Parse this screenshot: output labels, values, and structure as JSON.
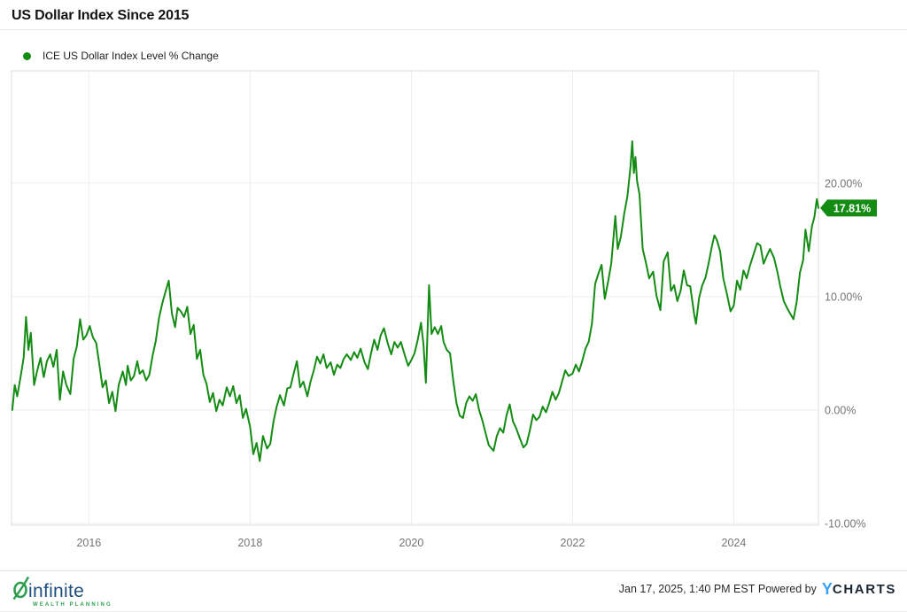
{
  "header": {
    "title": "US Dollar Index Since 2015"
  },
  "legend": {
    "series_label": "ICE US Dollar Index Level % Change"
  },
  "chart_data": {
    "type": "line",
    "title": "US Dollar Index Since 2015",
    "xlabel": "",
    "ylabel": "",
    "grid": true,
    "legend_position": "top-left",
    "x_range": [
      2015.04,
      2025.05
    ],
    "y_range": [
      -10.16,
      29.9
    ],
    "x_ticks": [
      {
        "value": 2016,
        "label": "2016"
      },
      {
        "value": 2018,
        "label": "2018"
      },
      {
        "value": 2020,
        "label": "2020"
      },
      {
        "value": 2022,
        "label": "2022"
      },
      {
        "value": 2024,
        "label": "2024"
      }
    ],
    "y_ticks": [
      {
        "value": 20,
        "label": "20.00%"
      },
      {
        "value": 10,
        "label": "10.00%"
      },
      {
        "value": 0,
        "label": "0.00%"
      },
      {
        "value": -10,
        "label": "-10.00%"
      }
    ],
    "last_point": {
      "label": "17.81%",
      "value": 17.81,
      "x": 2025.05
    },
    "series": [
      {
        "name": "ICE US Dollar Index Level % Change",
        "color": "#148c14",
        "points": [
          [
            2015.05,
            0.0
          ],
          [
            2015.08,
            2.2
          ],
          [
            2015.11,
            1.2
          ],
          [
            2015.15,
            2.8
          ],
          [
            2015.19,
            4.6
          ],
          [
            2015.22,
            8.2
          ],
          [
            2015.25,
            5.3
          ],
          [
            2015.28,
            6.8
          ],
          [
            2015.32,
            2.2
          ],
          [
            2015.36,
            3.5
          ],
          [
            2015.4,
            4.6
          ],
          [
            2015.44,
            2.9
          ],
          [
            2015.48,
            4.3
          ],
          [
            2015.52,
            4.9
          ],
          [
            2015.56,
            3.8
          ],
          [
            2015.6,
            5.3
          ],
          [
            2015.64,
            0.9
          ],
          [
            2015.68,
            3.4
          ],
          [
            2015.72,
            2.2
          ],
          [
            2015.77,
            1.4
          ],
          [
            2015.81,
            4.5
          ],
          [
            2015.85,
            5.6
          ],
          [
            2015.89,
            8.0
          ],
          [
            2015.93,
            6.2
          ],
          [
            2015.97,
            6.6
          ],
          [
            2016.01,
            7.4
          ],
          [
            2016.05,
            6.4
          ],
          [
            2016.09,
            5.9
          ],
          [
            2016.13,
            4.0
          ],
          [
            2016.17,
            2.0
          ],
          [
            2016.21,
            2.6
          ],
          [
            2016.25,
            0.6
          ],
          [
            2016.29,
            1.6
          ],
          [
            2016.33,
            -0.1
          ],
          [
            2016.37,
            2.2
          ],
          [
            2016.42,
            3.4
          ],
          [
            2016.46,
            2.2
          ],
          [
            2016.48,
            3.9
          ],
          [
            2016.52,
            2.6
          ],
          [
            2016.56,
            3.0
          ],
          [
            2016.6,
            4.3
          ],
          [
            2016.63,
            3.2
          ],
          [
            2016.67,
            3.5
          ],
          [
            2016.71,
            2.6
          ],
          [
            2016.75,
            3.1
          ],
          [
            2016.79,
            4.8
          ],
          [
            2016.83,
            6.1
          ],
          [
            2016.87,
            8.1
          ],
          [
            2016.91,
            9.4
          ],
          [
            2016.95,
            10.4
          ],
          [
            2016.99,
            11.4
          ],
          [
            2017.03,
            8.5
          ],
          [
            2017.07,
            7.3
          ],
          [
            2017.1,
            9.0
          ],
          [
            2017.14,
            8.7
          ],
          [
            2017.18,
            8.2
          ],
          [
            2017.22,
            9.1
          ],
          [
            2017.26,
            6.7
          ],
          [
            2017.3,
            7.5
          ],
          [
            2017.34,
            4.5
          ],
          [
            2017.38,
            5.3
          ],
          [
            2017.42,
            3.1
          ],
          [
            2017.46,
            2.3
          ],
          [
            2017.5,
            0.7
          ],
          [
            2017.54,
            1.5
          ],
          [
            2017.58,
            -0.1
          ],
          [
            2017.62,
            0.9
          ],
          [
            2017.66,
            0.4
          ],
          [
            2017.71,
            2.0
          ],
          [
            2017.75,
            1.2
          ],
          [
            2017.79,
            2.1
          ],
          [
            2017.83,
            0.6
          ],
          [
            2017.87,
            1.3
          ],
          [
            2017.91,
            -0.7
          ],
          [
            2017.95,
            0.1
          ],
          [
            2018.0,
            -1.5
          ],
          [
            2018.04,
            -3.9
          ],
          [
            2018.08,
            -2.9
          ],
          [
            2018.12,
            -4.5
          ],
          [
            2018.16,
            -2.3
          ],
          [
            2018.21,
            -3.4
          ],
          [
            2018.25,
            -3.0
          ],
          [
            2018.29,
            -1.0
          ],
          [
            2018.33,
            0.3
          ],
          [
            2018.37,
            1.3
          ],
          [
            2018.42,
            0.4
          ],
          [
            2018.46,
            1.9
          ],
          [
            2018.5,
            2.0
          ],
          [
            2018.54,
            3.2
          ],
          [
            2018.58,
            4.3
          ],
          [
            2018.62,
            2.0
          ],
          [
            2018.66,
            2.5
          ],
          [
            2018.71,
            1.2
          ],
          [
            2018.75,
            2.5
          ],
          [
            2018.79,
            3.5
          ],
          [
            2018.83,
            4.7
          ],
          [
            2018.87,
            4.1
          ],
          [
            2018.91,
            4.9
          ],
          [
            2018.95,
            3.7
          ],
          [
            2019.0,
            4.2
          ],
          [
            2019.04,
            3.1
          ],
          [
            2019.08,
            4.0
          ],
          [
            2019.12,
            3.7
          ],
          [
            2019.16,
            4.5
          ],
          [
            2019.2,
            4.9
          ],
          [
            2019.25,
            4.4
          ],
          [
            2019.29,
            5.1
          ],
          [
            2019.33,
            4.6
          ],
          [
            2019.37,
            5.4
          ],
          [
            2019.42,
            4.2
          ],
          [
            2019.46,
            3.6
          ],
          [
            2019.5,
            5.0
          ],
          [
            2019.54,
            6.2
          ],
          [
            2019.58,
            5.3
          ],
          [
            2019.62,
            6.6
          ],
          [
            2019.66,
            7.2
          ],
          [
            2019.71,
            5.8
          ],
          [
            2019.75,
            4.9
          ],
          [
            2019.79,
            6.0
          ],
          [
            2019.83,
            5.5
          ],
          [
            2019.87,
            6.0
          ],
          [
            2019.92,
            4.8
          ],
          [
            2019.96,
            3.9
          ],
          [
            2020.0,
            4.4
          ],
          [
            2020.04,
            5.0
          ],
          [
            2020.08,
            6.2
          ],
          [
            2020.12,
            7.7
          ],
          [
            2020.15,
            5.8
          ],
          [
            2020.18,
            2.4
          ],
          [
            2020.22,
            11.0
          ],
          [
            2020.25,
            6.7
          ],
          [
            2020.29,
            7.3
          ],
          [
            2020.33,
            6.7
          ],
          [
            2020.37,
            7.4
          ],
          [
            2020.4,
            6.0
          ],
          [
            2020.44,
            5.3
          ],
          [
            2020.48,
            5.0
          ],
          [
            2020.52,
            2.6
          ],
          [
            2020.56,
            0.6
          ],
          [
            2020.6,
            -0.5
          ],
          [
            2020.64,
            -0.7
          ],
          [
            2020.68,
            0.6
          ],
          [
            2020.72,
            1.2
          ],
          [
            2020.76,
            0.8
          ],
          [
            2020.8,
            1.4
          ],
          [
            2020.84,
            0.0
          ],
          [
            2020.88,
            -0.9
          ],
          [
            2020.92,
            -2.0
          ],
          [
            2020.96,
            -3.1
          ],
          [
            2021.02,
            -3.6
          ],
          [
            2021.06,
            -2.3
          ],
          [
            2021.1,
            -1.6
          ],
          [
            2021.14,
            -2.0
          ],
          [
            2021.18,
            -0.5
          ],
          [
            2021.22,
            0.5
          ],
          [
            2021.26,
            -1.0
          ],
          [
            2021.3,
            -1.6
          ],
          [
            2021.34,
            -2.4
          ],
          [
            2021.39,
            -3.3
          ],
          [
            2021.43,
            -3.0
          ],
          [
            2021.47,
            -1.8
          ],
          [
            2021.51,
            -0.4
          ],
          [
            2021.55,
            -0.9
          ],
          [
            2021.59,
            -0.6
          ],
          [
            2021.63,
            0.3
          ],
          [
            2021.67,
            -0.2
          ],
          [
            2021.71,
            0.6
          ],
          [
            2021.75,
            1.6
          ],
          [
            2021.79,
            0.9
          ],
          [
            2021.83,
            1.5
          ],
          [
            2021.87,
            2.5
          ],
          [
            2021.91,
            3.5
          ],
          [
            2021.95,
            3.0
          ],
          [
            2022.0,
            3.2
          ],
          [
            2022.04,
            4.0
          ],
          [
            2022.08,
            3.4
          ],
          [
            2022.12,
            4.3
          ],
          [
            2022.16,
            5.4
          ],
          [
            2022.2,
            6.0
          ],
          [
            2022.24,
            7.6
          ],
          [
            2022.28,
            11.1
          ],
          [
            2022.32,
            12.0
          ],
          [
            2022.36,
            12.8
          ],
          [
            2022.4,
            9.8
          ],
          [
            2022.44,
            11.3
          ],
          [
            2022.48,
            12.9
          ],
          [
            2022.53,
            17.1
          ],
          [
            2022.56,
            14.2
          ],
          [
            2022.6,
            15.3
          ],
          [
            2022.64,
            17.3
          ],
          [
            2022.68,
            18.8
          ],
          [
            2022.72,
            21.5
          ],
          [
            2022.74,
            23.7
          ],
          [
            2022.76,
            20.9
          ],
          [
            2022.78,
            22.3
          ],
          [
            2022.8,
            20.2
          ],
          [
            2022.83,
            19.0
          ],
          [
            2022.87,
            14.2
          ],
          [
            2022.91,
            13.0
          ],
          [
            2022.95,
            11.6
          ],
          [
            2023.0,
            12.2
          ],
          [
            2023.04,
            10.1
          ],
          [
            2023.09,
            8.8
          ],
          [
            2023.13,
            13.1
          ],
          [
            2023.18,
            13.9
          ],
          [
            2023.22,
            10.5
          ],
          [
            2023.26,
            11.0
          ],
          [
            2023.3,
            9.6
          ],
          [
            2023.34,
            10.5
          ],
          [
            2023.38,
            12.3
          ],
          [
            2023.42,
            11.0
          ],
          [
            2023.46,
            10.9
          ],
          [
            2023.51,
            8.4
          ],
          [
            2023.53,
            7.6
          ],
          [
            2023.57,
            9.9
          ],
          [
            2023.61,
            11.0
          ],
          [
            2023.65,
            11.7
          ],
          [
            2023.69,
            13.0
          ],
          [
            2023.73,
            14.5
          ],
          [
            2023.76,
            15.4
          ],
          [
            2023.79,
            15.0
          ],
          [
            2023.83,
            14.0
          ],
          [
            2023.87,
            11.6
          ],
          [
            2023.91,
            10.4
          ],
          [
            2023.96,
            8.7
          ],
          [
            2024.0,
            9.2
          ],
          [
            2024.04,
            11.4
          ],
          [
            2024.08,
            10.6
          ],
          [
            2024.12,
            12.3
          ],
          [
            2024.16,
            11.6
          ],
          [
            2024.2,
            12.7
          ],
          [
            2024.24,
            13.6
          ],
          [
            2024.29,
            14.7
          ],
          [
            2024.33,
            14.5
          ],
          [
            2024.37,
            12.9
          ],
          [
            2024.41,
            13.6
          ],
          [
            2024.45,
            14.2
          ],
          [
            2024.5,
            13.4
          ],
          [
            2024.54,
            12.2
          ],
          [
            2024.58,
            10.8
          ],
          [
            2024.62,
            9.6
          ],
          [
            2024.66,
            9.0
          ],
          [
            2024.7,
            8.5
          ],
          [
            2024.74,
            8.0
          ],
          [
            2024.78,
            9.5
          ],
          [
            2024.82,
            12.1
          ],
          [
            2024.86,
            13.2
          ],
          [
            2024.89,
            15.9
          ],
          [
            2024.93,
            14.0
          ],
          [
            2024.97,
            16.2
          ],
          [
            2025.0,
            17.0
          ],
          [
            2025.03,
            18.6
          ],
          [
            2025.05,
            17.81
          ]
        ]
      }
    ]
  },
  "footer": {
    "logo": {
      "brand": "infinite",
      "tagline": "WEALTH PLANNING"
    },
    "timestamp": "Jan 17, 2025, 1:40 PM EST",
    "powered_by": "Powered by",
    "ycharts": {
      "y": "Y",
      "charts": "CHARTS"
    }
  },
  "colors": {
    "line_green": "#148c14",
    "flag_green": "#148c14",
    "grid": "#ededed",
    "plot_border": "#dcdcdc",
    "tick_label": "#757575",
    "ycharts_blue": "#38a3f0",
    "ycharts_dark": "#1b2733",
    "logo_navy": "#1f4e7c",
    "logo_green": "#2f9e4f"
  }
}
